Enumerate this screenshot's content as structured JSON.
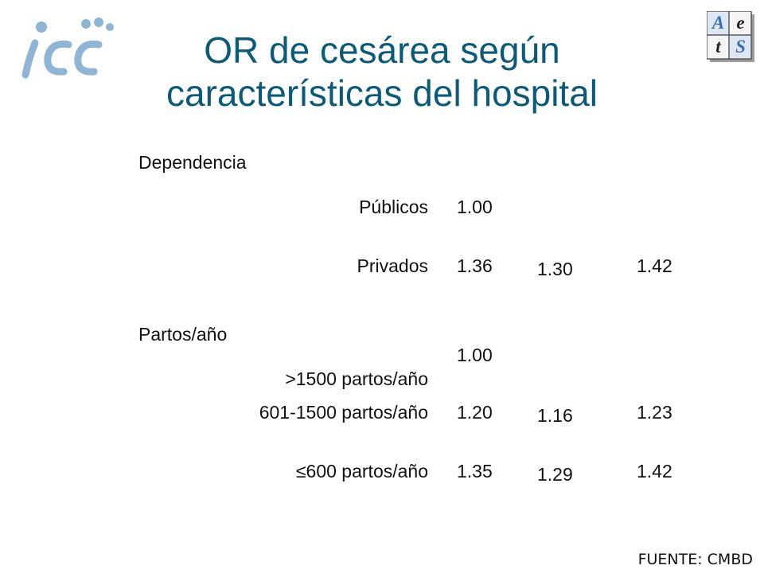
{
  "title_line1": "OR de cesárea según",
  "title_line2": "características del hospital",
  "logo_left": {
    "icon": "isc-logo-icon",
    "color": "#8fb5d6"
  },
  "logo_right": {
    "icon": "aets-logo-icon",
    "letters": [
      "A",
      "e",
      "t",
      "S"
    ],
    "colors": {
      "blue": "#3b6fb6",
      "dark": "#222222",
      "tile_light": "#f4f4f4",
      "tile_blue": "#dde7f4"
    }
  },
  "section_dependencia": "Dependencia",
  "row_publicos": {
    "label": "Públicos",
    "or": "1.00"
  },
  "row_privados": {
    "label": "Privados",
    "or": "1.36",
    "ci_low": "1.30",
    "ci_high": "1.42"
  },
  "section_partos": "Partos/año",
  "row_gt1500": {
    "label": ">1500 partos/año",
    "or": "1.00"
  },
  "row_601_1500": {
    "label": "601-1500 partos/año",
    "or": "1.20",
    "ci_low": "1.16",
    "ci_high": "1.23"
  },
  "row_le600": {
    "label": "≤600 partos/año",
    "or": "1.35",
    "ci_low": "1.29",
    "ci_high": "1.42"
  },
  "source": "FUENTE: CMBD",
  "title_color": "#0b5a7a"
}
